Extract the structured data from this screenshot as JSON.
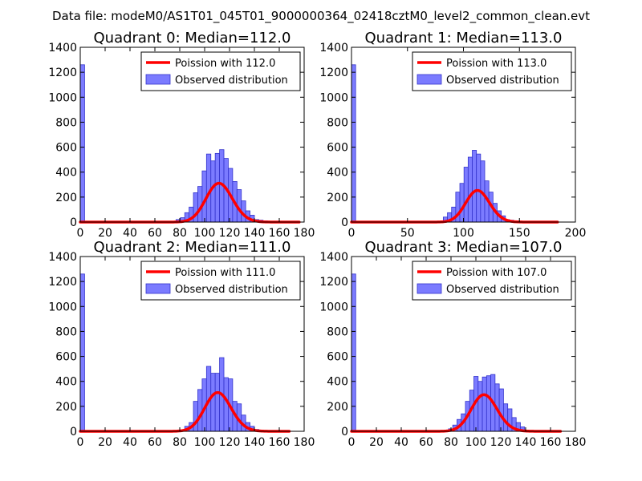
{
  "figure": {
    "suptitle": "Data file: modeM0/AS1T01_045T01_9000000364_02418cztM0_level2_common_clean.evt",
    "colors": {
      "curve": "#ff0000",
      "bars": "#7b7bff",
      "bar_edge": "#3333cc"
    }
  },
  "chart_data": [
    {
      "type": "bar",
      "title": "Quadrant 0: Median=112.0",
      "xlim": [
        0,
        180
      ],
      "ylim": [
        0,
        1400
      ],
      "xticks": [
        "0",
        "20",
        "40",
        "60",
        "80",
        "100",
        "120",
        "140",
        "160",
        "180"
      ],
      "yticks": [
        "0",
        "200",
        "400",
        "600",
        "800",
        "1000",
        "1200",
        "1400"
      ],
      "legend_position": "upper-right",
      "curve": {
        "name": "Poission with 112.0",
        "mean": 112.0,
        "total": 8250,
        "x_end": 176
      },
      "histogram": {
        "name": "Observed distribution",
        "bin_width": 3.5,
        "bins": [
          [
            0,
            1260
          ],
          [
            77,
            20
          ],
          [
            80.5,
            35
          ],
          [
            84,
            75
          ],
          [
            87.5,
            120
          ],
          [
            91,
            235
          ],
          [
            94.5,
            285
          ],
          [
            98,
            410
          ],
          [
            101.5,
            545
          ],
          [
            105,
            490
          ],
          [
            108.5,
            550
          ],
          [
            112,
            580
          ],
          [
            115.5,
            510
          ],
          [
            119,
            430
          ],
          [
            122.5,
            325
          ],
          [
            126,
            260
          ],
          [
            129.5,
            170
          ],
          [
            133,
            90
          ],
          [
            136.5,
            55
          ],
          [
            140,
            20
          ],
          [
            143.5,
            15
          ],
          [
            147,
            10
          ]
        ]
      }
    },
    {
      "type": "bar",
      "title": "Quadrant 1: Median=113.0",
      "xlim": [
        0,
        200
      ],
      "ylim": [
        0,
        1400
      ],
      "xticks": [
        "0",
        "50",
        "100",
        "150",
        "200"
      ],
      "yticks": [
        "0",
        "200",
        "400",
        "600",
        "800",
        "1000",
        "1200",
        "1400"
      ],
      "legend_position": "upper-right",
      "curve": {
        "name": "Poission with 113.0",
        "mean": 113.0,
        "total": 6750,
        "x_end": 184
      },
      "histogram": {
        "name": "Observed distribution",
        "bin_width": 3.7,
        "bins": [
          [
            0,
            1260
          ],
          [
            82,
            40
          ],
          [
            85.7,
            75
          ],
          [
            89.4,
            120
          ],
          [
            93.1,
            240
          ],
          [
            96.8,
            310
          ],
          [
            100.5,
            440
          ],
          [
            104.2,
            520
          ],
          [
            107.9,
            575
          ],
          [
            111.6,
            545
          ],
          [
            115.3,
            490
          ],
          [
            119,
            330
          ],
          [
            122.7,
            240
          ],
          [
            126.4,
            150
          ],
          [
            130.1,
            90
          ],
          [
            133.8,
            50
          ],
          [
            137.5,
            20
          ],
          [
            141.2,
            15
          ],
          [
            144.9,
            10
          ]
        ]
      }
    },
    {
      "type": "bar",
      "title": "Quadrant 2: Median=111.0",
      "xlim": [
        0,
        180
      ],
      "ylim": [
        0,
        1400
      ],
      "xticks": [
        "0",
        "20",
        "40",
        "60",
        "80",
        "100",
        "120",
        "140",
        "160",
        "180"
      ],
      "yticks": [
        "0",
        "200",
        "400",
        "600",
        "800",
        "1000",
        "1200",
        "1400"
      ],
      "legend_position": "upper-right",
      "curve": {
        "name": "Poission with 111.0",
        "mean": 111.0,
        "total": 8200,
        "x_end": 168
      },
      "histogram": {
        "name": "Observed distribution",
        "bin_width": 3.5,
        "bins": [
          [
            0,
            1260
          ],
          [
            84,
            40
          ],
          [
            87.5,
            70
          ],
          [
            91,
            240
          ],
          [
            94.5,
            335
          ],
          [
            98,
            420
          ],
          [
            101.5,
            520
          ],
          [
            105,
            465
          ],
          [
            108.5,
            465
          ],
          [
            112,
            590
          ],
          [
            115.5,
            430
          ],
          [
            119,
            420
          ],
          [
            122.5,
            240
          ],
          [
            126,
            220
          ],
          [
            129.5,
            130
          ],
          [
            133,
            70
          ],
          [
            136.5,
            40
          ],
          [
            140,
            15
          ]
        ]
      }
    },
    {
      "type": "bar",
      "title": "Quadrant 3: Median=107.0",
      "xlim": [
        0,
        180
      ],
      "ylim": [
        0,
        1400
      ],
      "xticks": [
        "0",
        "20",
        "40",
        "60",
        "80",
        "100",
        "120",
        "140",
        "160",
        "180"
      ],
      "yticks": [
        "0",
        "200",
        "400",
        "600",
        "800",
        "1000",
        "1200",
        "1400"
      ],
      "legend_position": "upper-right",
      "curve": {
        "name": "Poission with 107.0",
        "mean": 107.0,
        "total": 7600,
        "x_end": 168
      },
      "histogram": {
        "name": "Observed distribution",
        "bin_width": 3.4,
        "bins": [
          [
            0,
            1260
          ],
          [
            78,
            20
          ],
          [
            81.4,
            50
          ],
          [
            84.8,
            95
          ],
          [
            88.2,
            140
          ],
          [
            91.6,
            240
          ],
          [
            95,
            330
          ],
          [
            98.4,
            440
          ],
          [
            101.8,
            400
          ],
          [
            105.2,
            435
          ],
          [
            108.6,
            445
          ],
          [
            112,
            455
          ],
          [
            115.4,
            380
          ],
          [
            118.8,
            340
          ],
          [
            122.2,
            220
          ],
          [
            125.6,
            180
          ],
          [
            129,
            110
          ],
          [
            132.4,
            70
          ],
          [
            135.8,
            35
          ],
          [
            139.2,
            10
          ]
        ]
      }
    }
  ]
}
